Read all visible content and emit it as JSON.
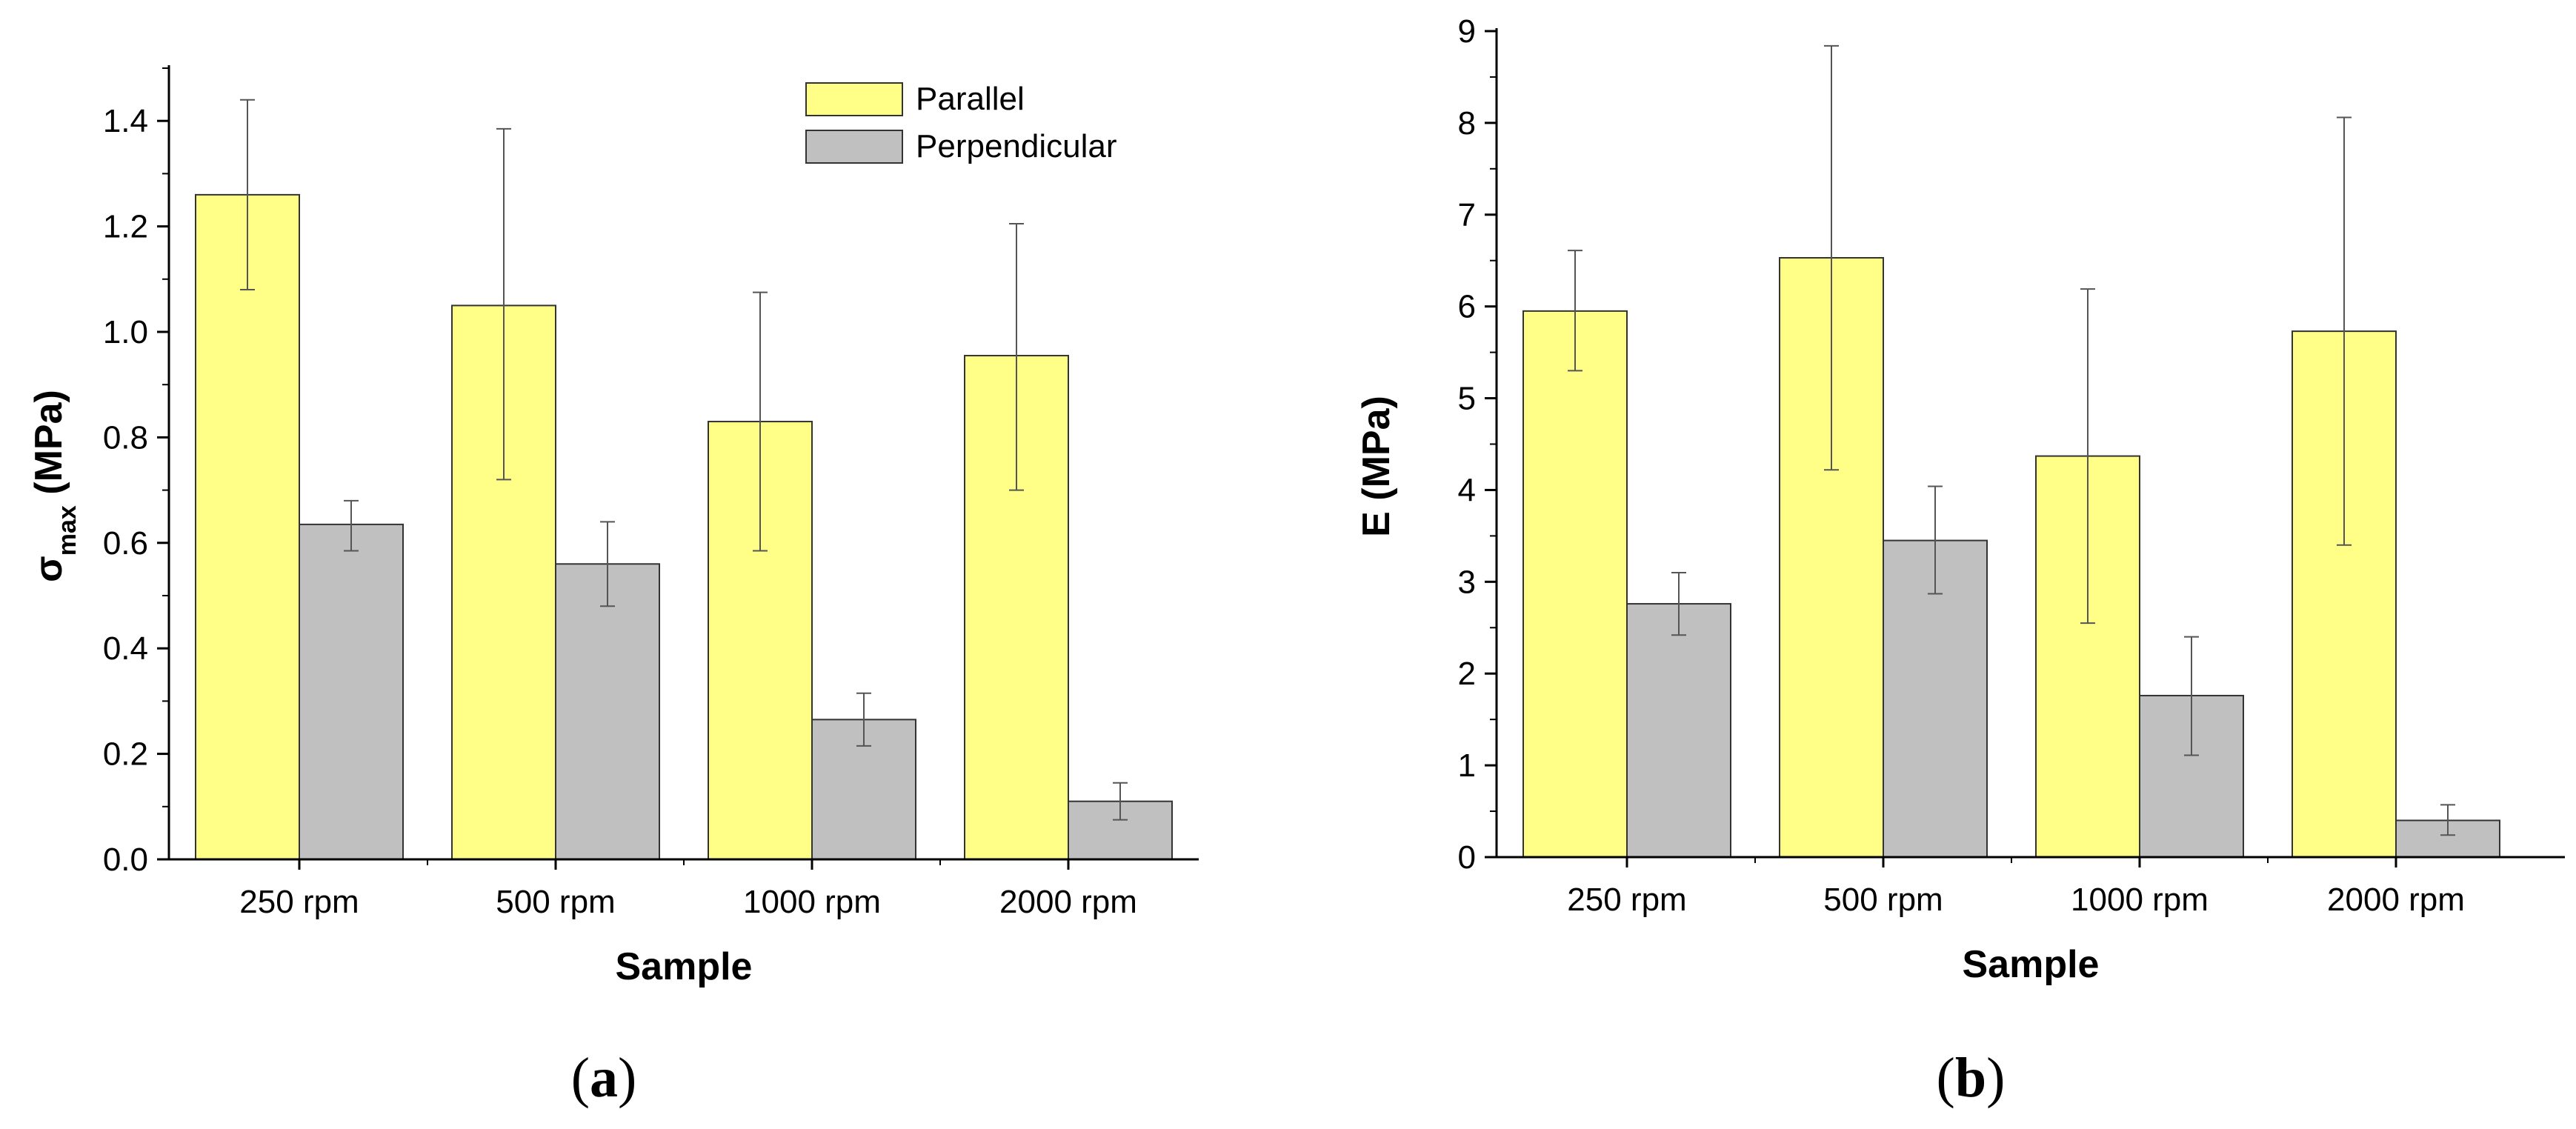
{
  "colors": {
    "parallel": "#ffff88",
    "perpendicular": "#c0c0c0",
    "axis": "#000000",
    "error": "#555555"
  },
  "chart_data": [
    {
      "type": "bar",
      "panel": "a",
      "xlabel": "Sample",
      "ylabel_main": "σ",
      "ylabel_sub": "max",
      "ylabel_unit": " (MPa)",
      "categories": [
        "250 rpm",
        "500 rpm",
        "1000 rpm",
        "2000 rpm"
      ],
      "ylim": [
        0,
        1.5
      ],
      "yticks": [
        0.0,
        0.2,
        0.4,
        0.6,
        0.8,
        1.0,
        1.2,
        1.4
      ],
      "ytick_labels": [
        "0.0",
        "0.2",
        "0.4",
        "0.6",
        "0.8",
        "1.0",
        "1.2",
        "1.4"
      ],
      "minor_step": 0.1,
      "legend": {
        "position": "top-right",
        "entries": [
          "Parallel",
          "Perpendicular"
        ]
      },
      "series": [
        {
          "name": "Parallel",
          "values": [
            1.26,
            1.05,
            0.83,
            0.955
          ],
          "err_low": [
            1.08,
            0.72,
            0.585,
            0.7
          ],
          "err_high": [
            1.44,
            1.385,
            1.075,
            1.205
          ]
        },
        {
          "name": "Perpendicular",
          "values": [
            0.635,
            0.56,
            0.265,
            0.11
          ],
          "err_low": [
            0.585,
            0.48,
            0.215,
            0.075
          ],
          "err_high": [
            0.68,
            0.64,
            0.315,
            0.145
          ]
        }
      ]
    },
    {
      "type": "bar",
      "panel": "b",
      "xlabel": "Sample",
      "ylabel_main": "E",
      "ylabel_sub": "",
      "ylabel_unit": " (MPa)",
      "categories": [
        "250 rpm",
        "500 rpm",
        "1000 rpm",
        "2000 rpm"
      ],
      "ylim": [
        0,
        9
      ],
      "yticks": [
        0,
        1,
        2,
        3,
        4,
        5,
        6,
        7,
        8,
        9
      ],
      "ytick_labels": [
        "0",
        "1",
        "2",
        "3",
        "4",
        "5",
        "6",
        "7",
        "8",
        "9"
      ],
      "minor_step": 0.5,
      "series": [
        {
          "name": "Parallel",
          "values": [
            5.95,
            6.53,
            4.37,
            5.73
          ],
          "err_low": [
            5.3,
            4.22,
            2.55,
            3.4
          ],
          "err_high": [
            6.61,
            8.84,
            6.19,
            8.06
          ]
        },
        {
          "name": "Perpendicular",
          "values": [
            2.76,
            3.45,
            1.76,
            0.4
          ],
          "err_low": [
            2.42,
            2.87,
            1.11,
            0.24
          ],
          "err_high": [
            3.1,
            4.04,
            2.4,
            0.57
          ]
        }
      ]
    }
  ],
  "panel_labels": {
    "a_open": "(",
    "a_letter": "a",
    "a_close": ")",
    "b_open": "(",
    "b_letter": "b",
    "b_close": ")"
  }
}
